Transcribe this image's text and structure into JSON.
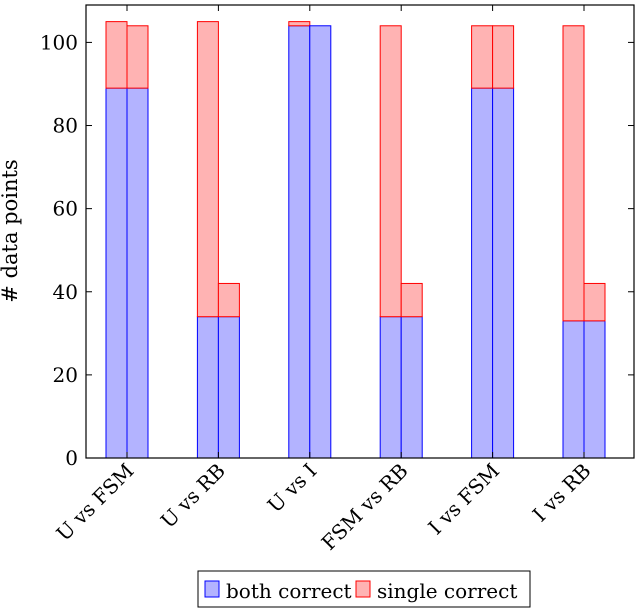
{
  "chart_data": {
    "type": "bar",
    "stacked": true,
    "categories": [
      "U vs FSM",
      "U vs RB",
      "U vs I",
      "FSM vs RB",
      "I vs FSM",
      "I vs RB"
    ],
    "bars_per_category": 2,
    "series": [
      {
        "name": "both correct",
        "color": "#b3b3ff",
        "stroke": "#0000ff",
        "values": [
          [
            89,
            89
          ],
          [
            34,
            34
          ],
          [
            104,
            104
          ],
          [
            34,
            34
          ],
          [
            89,
            89
          ],
          [
            33,
            33
          ]
        ]
      },
      {
        "name": "single correct",
        "color": "#ffb3b3",
        "stroke": "#ff0000",
        "values": [
          [
            16,
            15
          ],
          [
            71,
            8
          ],
          [
            1,
            0
          ],
          [
            70,
            8
          ],
          [
            15,
            15
          ],
          [
            71,
            9
          ]
        ]
      }
    ],
    "xlabel": "",
    "ylabel": "# data points",
    "ylim": [
      0,
      109
    ],
    "yticks": [
      0,
      20,
      40,
      60,
      80,
      100
    ],
    "grid": false,
    "legend_position": "bottom"
  }
}
